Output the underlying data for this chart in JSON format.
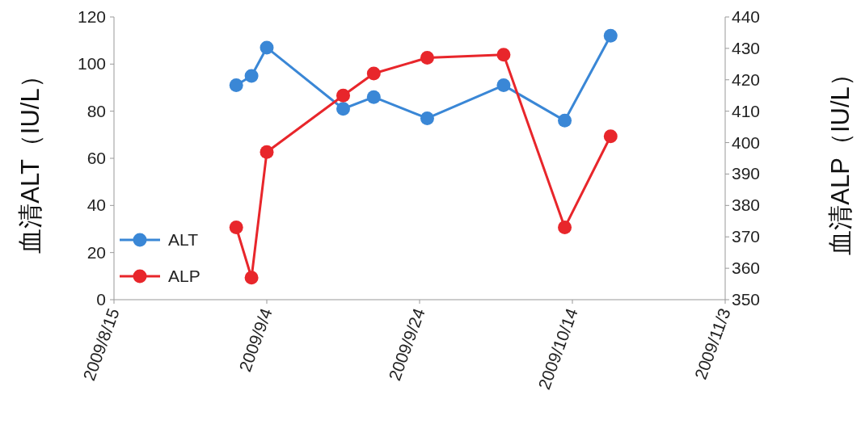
{
  "chart_data": {
    "type": "line",
    "ylabel": "血清ALT（IU/L）",
    "y2label": "血清ALP（IU/L）",
    "x": [
      "2009-08-31",
      "2009-09-02",
      "2009-09-04",
      "2009-09-14",
      "2009-09-18",
      "2009-09-25",
      "2009-10-05",
      "2009-10-13",
      "2009-10-19"
    ],
    "series": [
      {
        "name": "ALT",
        "color": "#3a87d6",
        "values": [
          91,
          95,
          107,
          81,
          86,
          77,
          91,
          76,
          112
        ]
      },
      {
        "name": "ALP",
        "color": "#e8262b",
        "axis": "y2",
        "values": [
          373,
          357,
          397,
          415,
          422,
          427,
          428,
          373,
          402
        ]
      }
    ],
    "xlim": [
      "2009-08-15",
      "2009-11-03"
    ],
    "xticks": [
      {
        "value": "2009-08-15",
        "label": "2009/8/15"
      },
      {
        "value": "2009-09-04",
        "label": "2009/9/4"
      },
      {
        "value": "2009-09-24",
        "label": "2009/9/24"
      },
      {
        "value": "2009-10-14",
        "label": "2009/10/14"
      },
      {
        "value": "2009-11-03",
        "label": "2009/11/3"
      }
    ],
    "ylim": [
      0,
      120
    ],
    "yticks": [
      0,
      20,
      40,
      60,
      80,
      100,
      120
    ],
    "y2lim": [
      350,
      440
    ],
    "y2ticks": [
      350,
      360,
      370,
      380,
      390,
      400,
      410,
      420,
      430,
      440
    ],
    "marker": "circle",
    "legend": "bottom left"
  }
}
